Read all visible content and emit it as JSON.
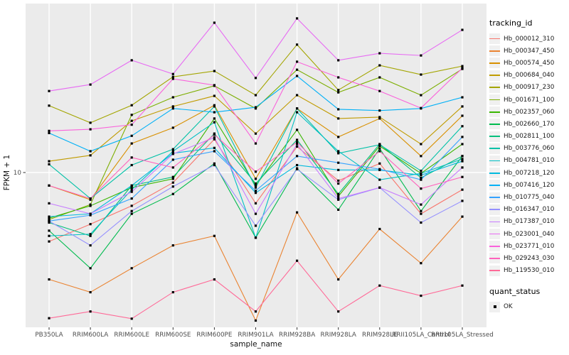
{
  "figure": {
    "panel_bg": "#EBEBEB",
    "grid_color": "#FFFFFF",
    "tick_color": "#333333",
    "tick_label_color": "#4D4D4D",
    "point_color": "#000000"
  },
  "chart_data": {
    "type": "line",
    "xlabel": "sample_name",
    "ylabel": "FPKM + 1",
    "yscale": "log10",
    "y_ticks": [
      10
    ],
    "y_tick_labels": [
      "10"
    ],
    "ylim_approx": [
      1.6,
      70
    ],
    "grid": "major-only",
    "legend_title": "tracking_id",
    "legend_position": "right",
    "point_legend": {
      "title": "quant_status",
      "items": [
        "OK"
      ],
      "marker": "black-square"
    },
    "x_categories": [
      "PB350LA",
      "RRIM600LA",
      "RRIM600LE",
      "RRIM600SE",
      "RRIM600PE",
      "RRIM901LA",
      "RRIM928BA",
      "RRIM928LA",
      "RRIM928LE",
      "RRII105LA_Control",
      "RRII105LA_Stressed"
    ],
    "series": [
      {
        "name": "Hb_000012_310",
        "color": "#F8766D",
        "values": [
          4.5,
          5.5,
          6.8,
          8.9,
          14.7,
          7.0,
          13.5,
          9.1,
          11.1,
          6.2,
          8.2
        ]
      },
      {
        "name": "Hb_000347_450",
        "color": "#EA8331",
        "values": [
          2.9,
          2.5,
          3.3,
          4.3,
          4.8,
          1.8,
          6.3,
          2.9,
          5.2,
          3.5,
          6.0
        ]
      },
      {
        "name": "Hb_000574_450",
        "color": "#D89000",
        "values": [
          8.6,
          7.3,
          14.0,
          16.8,
          21.8,
          9.3,
          21.0,
          15.1,
          18.7,
          12.1,
          19.3
        ]
      },
      {
        "name": "Hb_000684_040",
        "color": "#C09B00",
        "values": [
          11.4,
          12.2,
          18.2,
          21.5,
          24.3,
          15.7,
          24.5,
          18.7,
          19.0,
          13.9,
          21.5
        ]
      },
      {
        "name": "Hb_000917_230",
        "color": "#A3A500",
        "values": [
          21.7,
          17.8,
          21.8,
          30.3,
          32.4,
          24.5,
          44.0,
          26.0,
          34.6,
          31.1,
          34.3
        ]
      },
      {
        "name": "Hb_001671_100",
        "color": "#7CAE00",
        "values": [
          5.8,
          6.9,
          19.5,
          23.9,
          27.3,
          21.0,
          32.9,
          25.3,
          30.1,
          24.5,
          33.2
        ]
      },
      {
        "name": "Hb_002357_060",
        "color": "#39B600",
        "values": [
          5.9,
          6.8,
          8.4,
          9.3,
          18.7,
          8.6,
          16.4,
          7.6,
          13.6,
          9.9,
          13.9
        ]
      },
      {
        "name": "Hb_002660_170",
        "color": "#00BB4E",
        "values": [
          5.1,
          3.3,
          6.2,
          7.8,
          11.1,
          4.7,
          10.5,
          6.5,
          13.2,
          6.4,
          12.1
        ]
      },
      {
        "name": "Hb_002811_100",
        "color": "#00BF7D",
        "values": [
          5.6,
          4.8,
          8.6,
          9.5,
          15.7,
          8.8,
          14.6,
          7.8,
          13.9,
          9.4,
          12.1
        ]
      },
      {
        "name": "Hb_003776_060",
        "color": "#00C1A7",
        "values": [
          11.0,
          7.4,
          10.9,
          13.1,
          21.5,
          8.4,
          21.0,
          12.5,
          13.8,
          10.2,
          17.1
        ]
      },
      {
        "name": "Hb_004781_010",
        "color": "#00BFC4",
        "values": [
          4.8,
          4.9,
          8.2,
          12.8,
          17.9,
          4.7,
          20.1,
          12.8,
          9.2,
          9.9,
          11.7
        ]
      },
      {
        "name": "Hb_007218_120",
        "color": "#00BADE",
        "values": [
          6.0,
          6.2,
          8.6,
          12.5,
          13.3,
          7.9,
          10.9,
          10.3,
          10.3,
          9.7,
          11.4
        ]
      },
      {
        "name": "Hb_007416_120",
        "color": "#00B0F6",
        "values": [
          15.8,
          12.8,
          15.3,
          21.0,
          20.1,
          21.3,
          30.6,
          20.8,
          20.5,
          21.0,
          23.9
        ]
      },
      {
        "name": "Hb_010775_040",
        "color": "#35A2FF",
        "values": [
          5.7,
          6.1,
          7.4,
          11.6,
          12.8,
          8.1,
          12.1,
          11.2,
          10.4,
          9.2,
          15.1
        ]
      },
      {
        "name": "Hb_016347_010",
        "color": "#9590FF",
        "values": [
          5.7,
          4.3,
          6.4,
          8.5,
          10.9,
          5.4,
          10.4,
          7.3,
          8.4,
          5.6,
          7.2
        ]
      },
      {
        "name": "Hb_017387_010",
        "color": "#C77CFF",
        "values": [
          7.0,
          6.2,
          8.0,
          12.4,
          15.0,
          6.2,
          13.9,
          7.4,
          8.4,
          6.9,
          10.6
        ]
      },
      {
        "name": "Hb_023001_040",
        "color": "#E76BF3",
        "values": [
          25.7,
          27.7,
          36.7,
          31.3,
          56.7,
          29.9,
          59.6,
          36.7,
          39.8,
          38.8,
          52.2
        ]
      },
      {
        "name": "Hb_023771_010",
        "color": "#FA62DB",
        "values": [
          16.2,
          16.5,
          17.4,
          29.6,
          27.5,
          14.0,
          36.1,
          30.1,
          25.7,
          21.1,
          33.5
        ]
      },
      {
        "name": "Hb_029243_030",
        "color": "#FF62BC",
        "values": [
          8.6,
          7.4,
          11.9,
          10.6,
          15.5,
          10.1,
          14.2,
          8.8,
          12.8,
          8.3,
          9.5
        ]
      },
      {
        "name": "Hb_119530_010",
        "color": "#FF6A98",
        "values": [
          1.85,
          2.0,
          1.84,
          2.5,
          2.9,
          2.0,
          3.6,
          2.0,
          2.7,
          2.4,
          2.7
        ]
      }
    ]
  }
}
